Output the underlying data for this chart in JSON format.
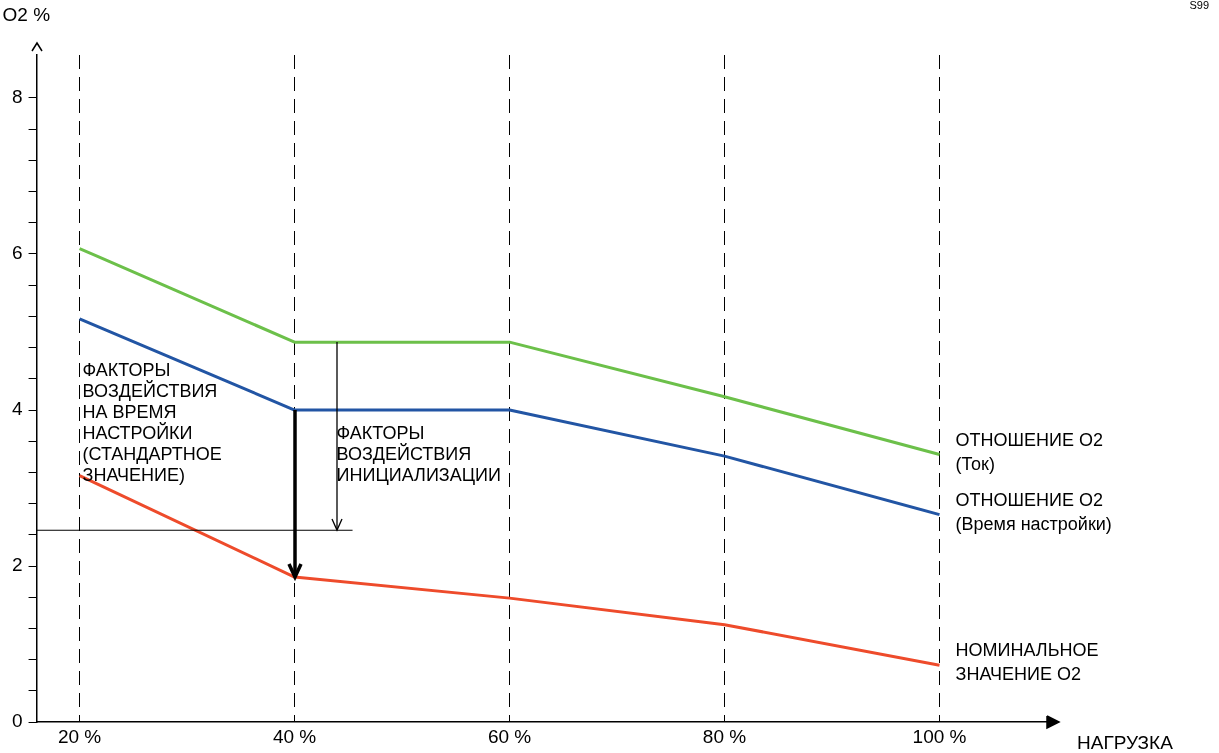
{
  "chart_data": {
    "type": "line",
    "xlabel": "НАГРУЗКА",
    "ylabel": "O2 %",
    "x": [
      20,
      40,
      60,
      80,
      100
    ],
    "xlim": [
      16,
      110
    ],
    "xticks": [
      {
        "value": 20,
        "label": "20 %"
      },
      {
        "value": 40,
        "label": "40 %"
      },
      {
        "value": 60,
        "label": "60 %"
      },
      {
        "value": 80,
        "label": "80 %"
      },
      {
        "value": 100,
        "label": "100 %"
      }
    ],
    "ylim": [
      0,
      8.55
    ],
    "yticks": [
      0,
      {
        "value": 0.4,
        "label": null
      },
      {
        "value": 0.8,
        "label": null
      },
      {
        "value": 1.2,
        "label": null
      },
      {
        "value": 1.6,
        "label": null
      },
      2,
      {
        "value": 2.4,
        "label": null
      },
      {
        "value": 2.8,
        "label": null
      },
      {
        "value": 3.2,
        "label": null
      },
      {
        "value": 3.6,
        "label": null
      },
      4,
      {
        "value": 4.4,
        "label": null
      },
      {
        "value": 4.8,
        "label": null
      },
      {
        "value": 5.2,
        "label": null
      },
      {
        "value": 5.6,
        "label": null
      },
      6,
      {
        "value": 6.4,
        "label": null
      },
      {
        "value": 6.8,
        "label": null
      },
      {
        "value": 7.2,
        "label": null
      },
      {
        "value": 7.6,
        "label": null
      },
      8
    ],
    "grid": "x",
    "legend": false,
    "series": [
      {
        "name": "ОТНОШЕНИЕ O2\n(Ток)",
        "color": "#6cc04a",
        "values": [
          6.07,
          4.87,
          4.87,
          4.17,
          3.43
        ]
      },
      {
        "name": "ОТНОШЕНИЕ O2\n(Время настройки)",
        "color": "#2255a4",
        "values": [
          5.17,
          4.0,
          4.0,
          3.41,
          2.66
        ]
      },
      {
        "name": "НОМИНАЛЬНОЕ\nЗНАЧЕНИЕ O2",
        "color": "#ee4b2b",
        "values": [
          3.16,
          1.86,
          1.59,
          1.25,
          0.73
        ]
      }
    ],
    "ref_lines": [
      {
        "axis": "y",
        "value": 2.46,
        "color": "#000000"
      }
    ],
    "annotations": [
      "ФАКТОРЫ\nВОЗДЕЙСТВИЯ\nНА ВРЕМЯ\nНАСТРОЙКИ\n(СТАНДАРТНОЕ\nЗНАЧЕНИЕ)",
      "ФАКТОРЫ\nВОЗДЕЙСТВИЯ\nИНИЦИАЛИЗАЦИИ",
      "S99"
    ]
  }
}
